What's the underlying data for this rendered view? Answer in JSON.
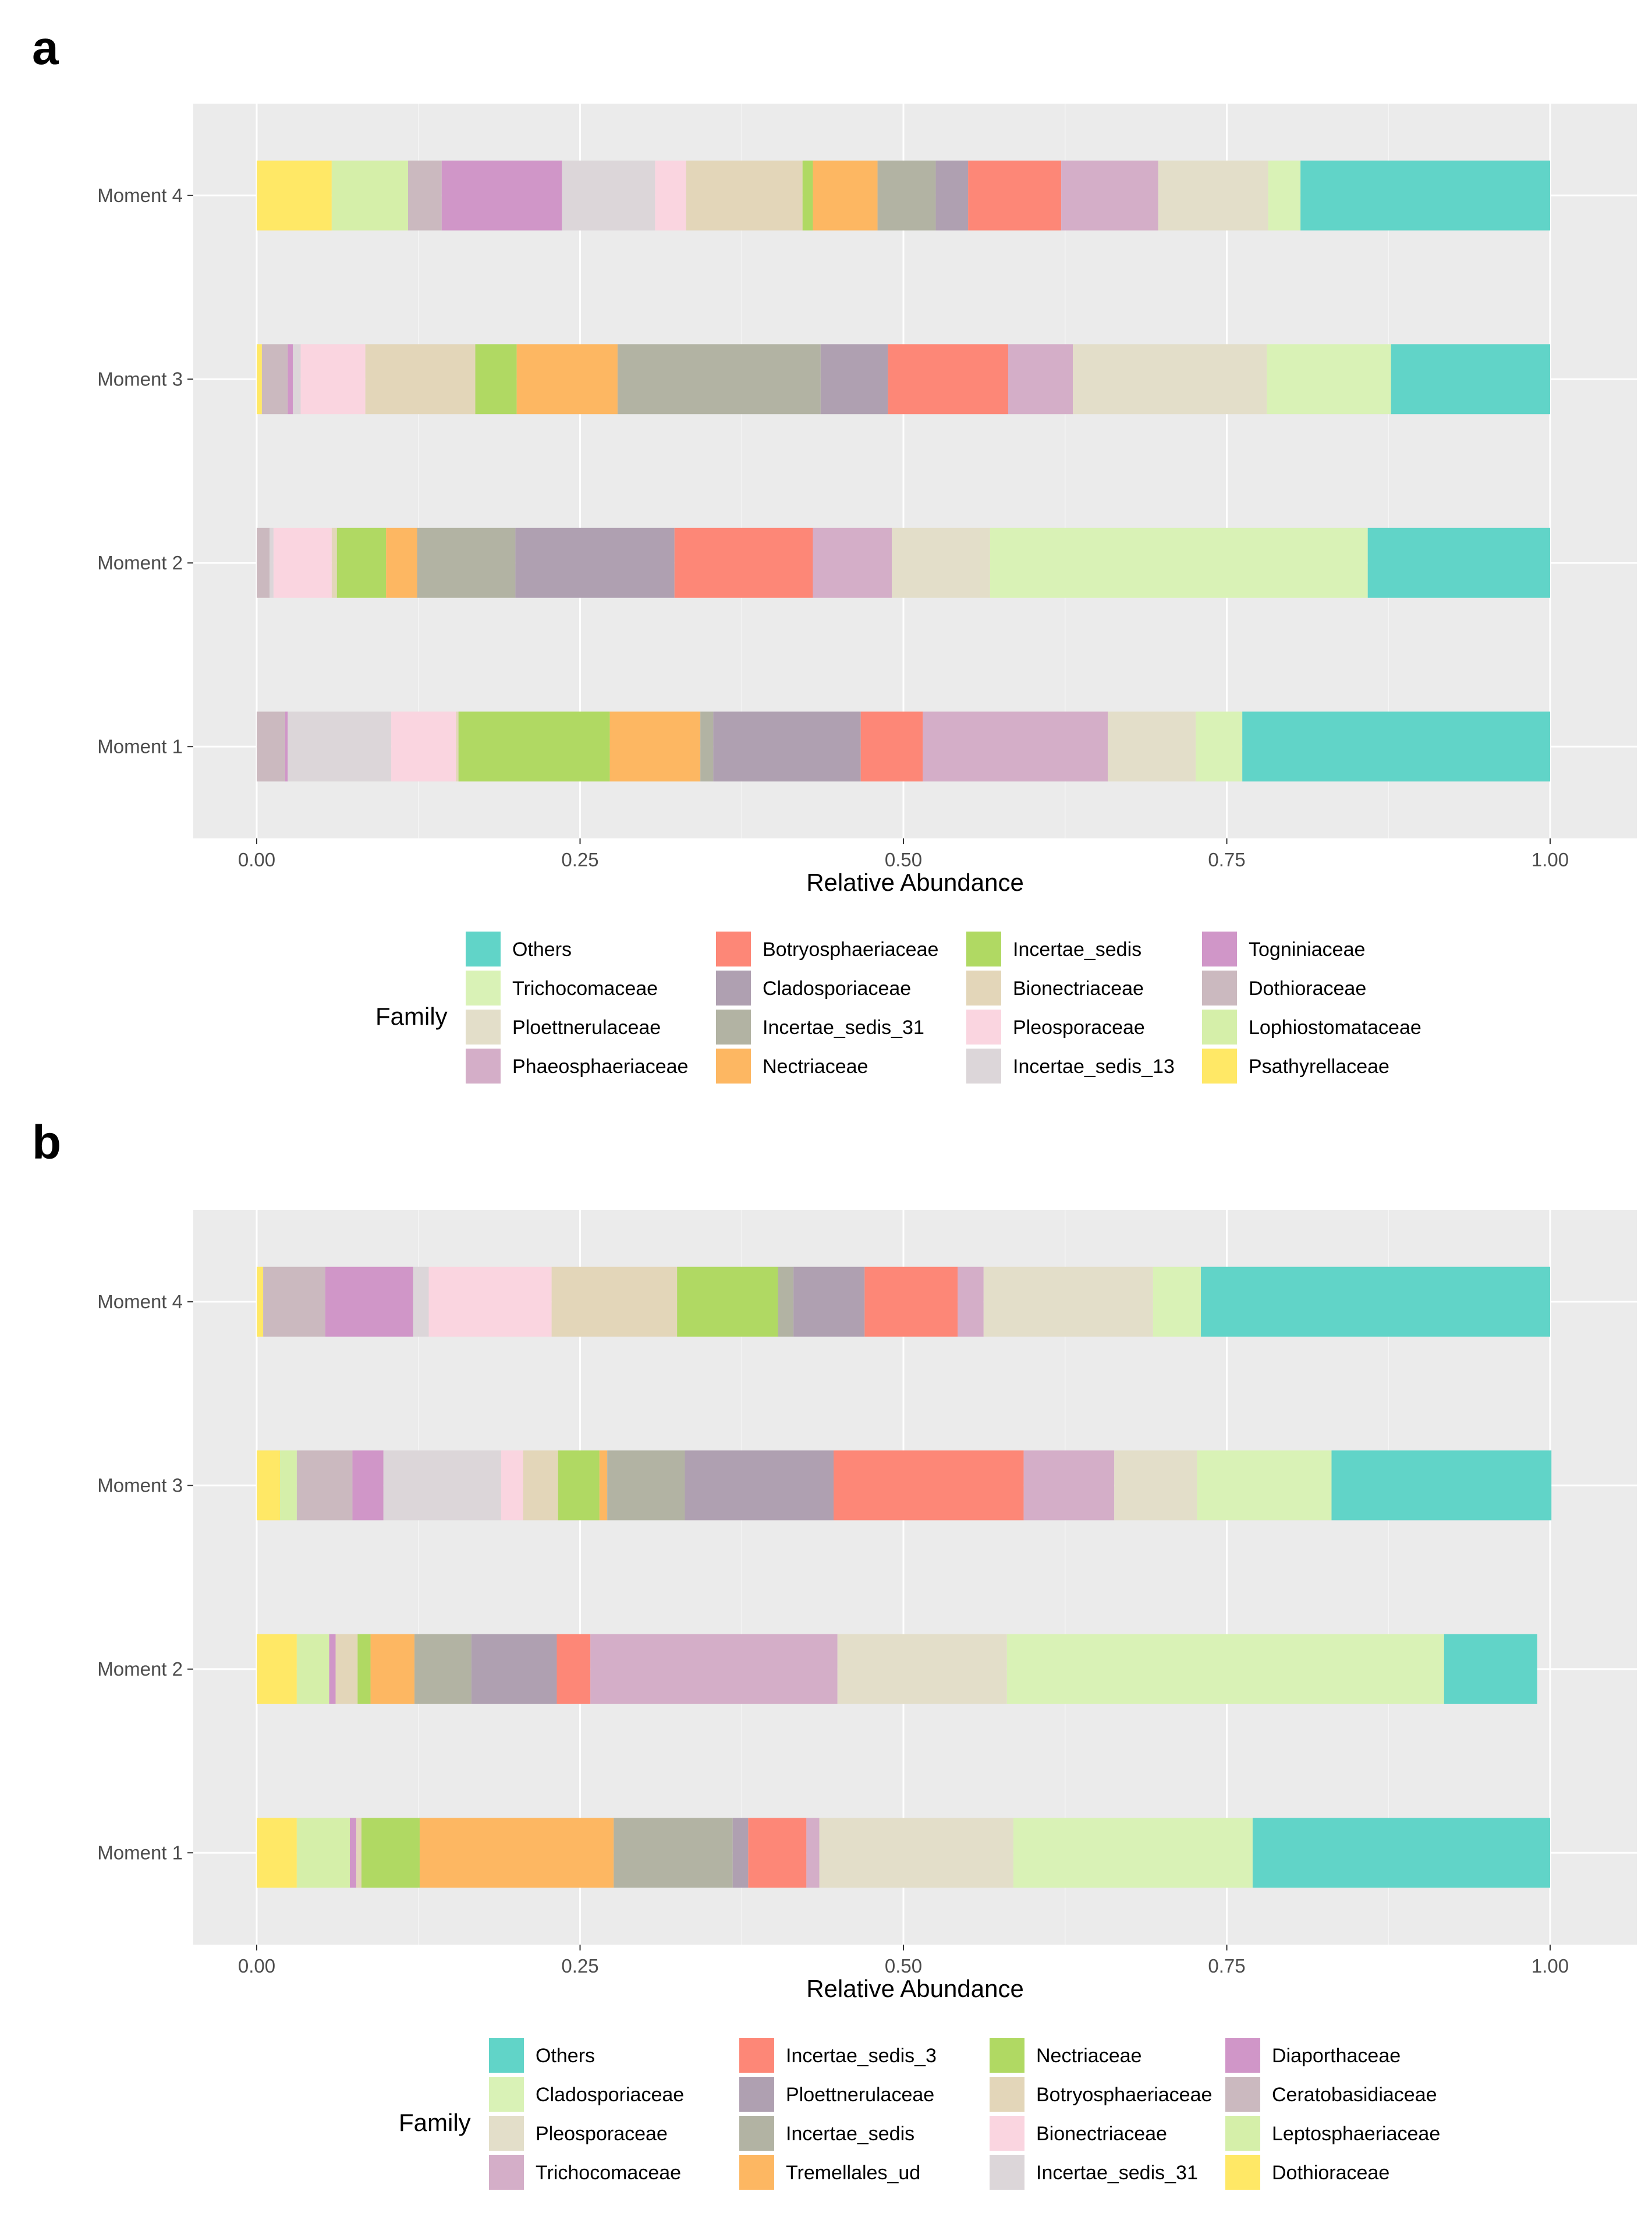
{
  "chart_data": [
    {
      "panel": "a",
      "type": "bar",
      "orientation": "horizontal",
      "stacked": true,
      "xlabel": "Relative Abundance",
      "xlim": [
        0,
        1
      ],
      "x_ticks": [
        "0.00",
        "0.25",
        "0.50",
        "0.75",
        "1.00"
      ],
      "categories": [
        "Moment 1",
        "Moment 2",
        "Moment 3",
        "Moment 4"
      ],
      "legend_title": "Family",
      "legend_position": "bottom",
      "legend": [
        "Others",
        "Trichocomaceae",
        "Ploettnerulaceae",
        "Phaeosphaeriaceae",
        "Botryosphaeriaceae",
        "Cladosporiaceae",
        "Incertae_sedis_31",
        "Nectriaceae",
        "Incertae_sedis",
        "Bionectriaceae",
        "Pleosporaceae",
        "Incertae_sedis_13",
        "Togniniaceae",
        "Dothioraceae",
        "Lophiostomataceae",
        "Psathyrellaceae"
      ],
      "series": [
        {
          "name": "Psathyrellaceae",
          "color": "#FFE866",
          "values": [
            0.0,
            0.0,
            0.004,
            0.058
          ]
        },
        {
          "name": "Lophiostomataceae",
          "color": "#D5EFA9",
          "values": [
            0.0,
            0.0,
            0.0,
            0.059
          ]
        },
        {
          "name": "Dothioraceae",
          "color": "#CBB9BF",
          "values": [
            0.022,
            0.01,
            0.02,
            0.026
          ]
        },
        {
          "name": "Togniniaceae",
          "color": "#D096C8",
          "values": [
            0.002,
            0.0,
            0.004,
            0.093
          ]
        },
        {
          "name": "Incertae_sedis_13",
          "color": "#DCD6D9",
          "values": [
            0.08,
            0.003,
            0.006,
            0.072
          ]
        },
        {
          "name": "Pleosporaceae",
          "color": "#FAD5E0",
          "values": [
            0.05,
            0.045,
            0.05,
            0.024
          ]
        },
        {
          "name": "Bionectriaceae",
          "color": "#E3D6B9",
          "values": [
            0.002,
            0.004,
            0.085,
            0.09
          ]
        },
        {
          "name": "Incertae_sedis",
          "color": "#B0D963",
          "values": [
            0.117,
            0.038,
            0.032,
            0.008
          ]
        },
        {
          "name": "Nectriaceae",
          "color": "#FDB762",
          "values": [
            0.07,
            0.024,
            0.078,
            0.05
          ]
        },
        {
          "name": "Incertae_sedis_31",
          "color": "#B2B3A3",
          "values": [
            0.01,
            0.076,
            0.157,
            0.045
          ]
        },
        {
          "name": "Cladosporiaceae",
          "color": "#AFA0B1",
          "values": [
            0.114,
            0.123,
            0.052,
            0.025
          ]
        },
        {
          "name": "Botryosphaeriaceae",
          "color": "#FD8777",
          "values": [
            0.048,
            0.107,
            0.093,
            0.072
          ]
        },
        {
          "name": "Phaeosphaeriaceae",
          "color": "#D4AEC8",
          "values": [
            0.143,
            0.061,
            0.05,
            0.075
          ]
        },
        {
          "name": "Ploettnerulaceae",
          "color": "#E3DEC9",
          "values": [
            0.068,
            0.076,
            0.15,
            0.085
          ]
        },
        {
          "name": "Trichocomaceae",
          "color": "#D9F2B6",
          "values": [
            0.036,
            0.292,
            0.096,
            0.025
          ]
        },
        {
          "name": "Others",
          "color": "#61D4C8",
          "values": [
            0.238,
            0.141,
            0.123,
            0.193
          ]
        }
      ]
    },
    {
      "panel": "b",
      "type": "bar",
      "orientation": "horizontal",
      "stacked": true,
      "xlabel": "Relative Abundance",
      "xlim": [
        0,
        1
      ],
      "x_ticks": [
        "0.00",
        "0.25",
        "0.50",
        "0.75",
        "1.00"
      ],
      "categories": [
        "Moment 1",
        "Moment 2",
        "Moment 3",
        "Moment 4"
      ],
      "legend_title": "Family",
      "legend_position": "bottom",
      "legend": [
        "Others",
        "Cladosporiaceae",
        "Pleosporaceae",
        "Trichocomaceae",
        "Incertae_sedis_3",
        "Ploettnerulaceae",
        "Incertae_sedis",
        "Tremellales_ud",
        "Nectriaceae",
        "Botryosphaeriaceae",
        "Bionectriaceae",
        "Incertae_sedis_31",
        "Diaporthaceae",
        "Ceratobasidiaceae",
        "Leptosphaeriaceae",
        "Dothioraceae"
      ],
      "series": [
        {
          "name": "Dothioraceae",
          "color": "#FFE866",
          "values": [
            0.031,
            0.031,
            0.018,
            0.005
          ]
        },
        {
          "name": "Leptosphaeriaceae",
          "color": "#D5EFA9",
          "values": [
            0.041,
            0.025,
            0.013,
            0.0
          ]
        },
        {
          "name": "Ceratobasidiaceae",
          "color": "#CBB9BF",
          "values": [
            0.0,
            0.0,
            0.043,
            0.048
          ]
        },
        {
          "name": "Diaporthaceae",
          "color": "#D096C8",
          "values": [
            0.005,
            0.005,
            0.024,
            0.068
          ]
        },
        {
          "name": "Incertae_sedis_31",
          "color": "#DCD6D9",
          "values": [
            0.0,
            0.0,
            0.091,
            0.012
          ]
        },
        {
          "name": "Bionectriaceae",
          "color": "#FAD5E0",
          "values": [
            0.0,
            0.0,
            0.017,
            0.095
          ]
        },
        {
          "name": "Botryosphaeriaceae",
          "color": "#E3D6B9",
          "values": [
            0.004,
            0.017,
            0.027,
            0.097
          ]
        },
        {
          "name": "Nectriaceae",
          "color": "#B0D963",
          "values": [
            0.045,
            0.01,
            0.032,
            0.078
          ]
        },
        {
          "name": "Tremellales_ud",
          "color": "#FDB762",
          "values": [
            0.15,
            0.034,
            0.006,
            0.0
          ]
        },
        {
          "name": "Incertae_sedis",
          "color": "#B2B3A3",
          "values": [
            0.092,
            0.044,
            0.06,
            0.012
          ]
        },
        {
          "name": "Ploettnerulaceae",
          "color": "#AFA0B1",
          "values": [
            0.012,
            0.066,
            0.115,
            0.055
          ]
        },
        {
          "name": "Incertae_sedis_3",
          "color": "#FD8777",
          "values": [
            0.045,
            0.026,
            0.147,
            0.072
          ]
        },
        {
          "name": "Trichocomaceae",
          "color": "#D4AEC8",
          "values": [
            0.01,
            0.191,
            0.07,
            0.02
          ]
        },
        {
          "name": "Pleosporaceae",
          "color": "#E3DEC9",
          "values": [
            0.15,
            0.131,
            0.064,
            0.131
          ]
        },
        {
          "name": "Cladosporiaceae",
          "color": "#D9F2B6",
          "values": [
            0.185,
            0.338,
            0.104,
            0.037
          ]
        },
        {
          "name": "Others",
          "color": "#61D4C8",
          "values": [
            0.23,
            0.072,
            0.17,
            0.27
          ]
        }
      ]
    }
  ]
}
